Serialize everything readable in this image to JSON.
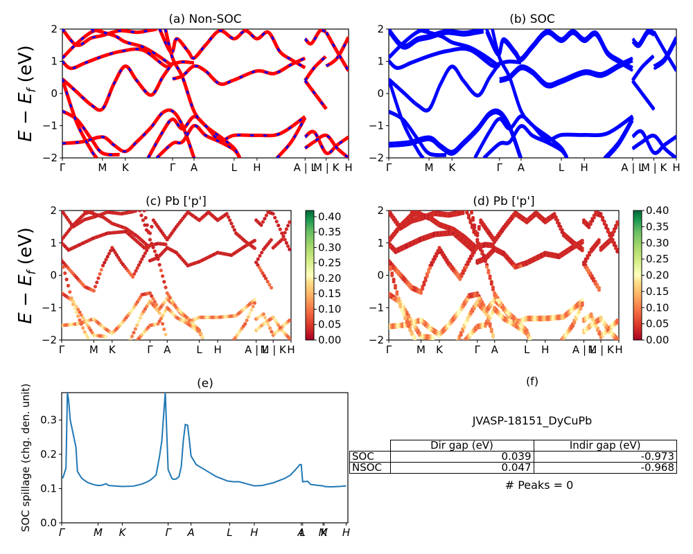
{
  "chart_data": [
    {
      "id": "a",
      "type": "line",
      "title": "(a) Non-SOC",
      "ylabel": "E − E_f (eV)",
      "ylim": [
        -2,
        2
      ],
      "yticks": [
        "−2",
        "−1",
        "0",
        "1",
        "2"
      ],
      "xticks": [
        "Γ",
        "M",
        "K",
        "Γ",
        "A",
        "L",
        "H",
        "A | L",
        "M | K",
        "H"
      ],
      "xtick_pos": [
        0,
        0.14,
        0.22,
        0.385,
        0.46,
        0.6,
        0.68,
        0.848,
        0.922,
        1.0
      ],
      "style": "red line with blue dashes overlaid (non-SOC bands)",
      "colors": {
        "primary": "#ff0000",
        "secondary": "#0000ff"
      },
      "bands": [
        [
          [
            0,
            1.0
          ],
          [
            0.03,
            0.78
          ],
          [
            0.08,
            0.95
          ],
          [
            0.14,
            1.15
          ],
          [
            0.2,
            1.3
          ],
          [
            0.28,
            1.35
          ],
          [
            0.36,
            0.85
          ],
          [
            0.385,
            0.92
          ],
          [
            0.42,
            0.98
          ],
          [
            0.46,
            0.95
          ]
        ],
        [
          [
            0,
            0.45
          ],
          [
            0.05,
            0.05
          ],
          [
            0.1,
            -0.35
          ],
          [
            0.14,
            -0.48
          ],
          [
            0.18,
            0.3
          ],
          [
            0.22,
            0.85
          ],
          [
            0.26,
            0.4
          ],
          [
            0.31,
            -0.05
          ],
          [
            0.35,
            0.5
          ],
          [
            0.385,
            0.95
          ]
        ],
        [
          [
            0.385,
            0.45
          ],
          [
            0.42,
            0.55
          ],
          [
            0.46,
            0.85
          ],
          [
            0.5,
            0.7
          ],
          [
            0.55,
            0.3
          ],
          [
            0.6,
            0.42
          ],
          [
            0.68,
            0.7
          ],
          [
            0.74,
            0.62
          ],
          [
            0.8,
            0.9
          ],
          [
            0.848,
            1.1
          ]
        ],
        [
          [
            0.848,
            0.4
          ],
          [
            0.88,
            0.8
          ],
          [
            0.92,
            1.15
          ]
        ],
        [
          [
            0.848,
            0.4
          ],
          [
            0.89,
            -0.1
          ],
          [
            0.922,
            -0.48
          ]
        ],
        [
          [
            0.922,
            0.85
          ],
          [
            0.96,
            1.1
          ],
          [
            1.0,
            1.75
          ]
        ],
        [
          [
            0.922,
            1.9
          ],
          [
            0.96,
            1.3
          ],
          [
            1.0,
            0.7
          ]
        ],
        [
          [
            0,
            -0.55
          ],
          [
            0.05,
            -0.8
          ],
          [
            0.1,
            -1.4
          ],
          [
            0.14,
            -1.85
          ],
          [
            0.2,
            -1.9
          ]
        ],
        [
          [
            0,
            -1.55
          ],
          [
            0.07,
            -1.5
          ],
          [
            0.14,
            -1.35
          ],
          [
            0.18,
            -1.6
          ],
          [
            0.22,
            -1.8
          ],
          [
            0.26,
            -1.5
          ],
          [
            0.31,
            -1.05
          ],
          [
            0.35,
            -0.6
          ],
          [
            0.385,
            -0.55
          ],
          [
            0.42,
            -1.0
          ],
          [
            0.46,
            -2.0
          ]
        ],
        [
          [
            0.3,
            -2.0
          ],
          [
            0.35,
            -1.2
          ],
          [
            0.385,
            -0.8
          ],
          [
            0.42,
            -1.1
          ],
          [
            0.46,
            -0.72
          ],
          [
            0.5,
            -1.0
          ],
          [
            0.55,
            -1.45
          ],
          [
            0.6,
            -1.3
          ],
          [
            0.68,
            -1.3
          ],
          [
            0.76,
            -1.25
          ],
          [
            0.848,
            -0.72
          ]
        ],
        [
          [
            0.33,
            -2.0
          ],
          [
            0.385,
            -1.55
          ],
          [
            0.42,
            -1.5
          ],
          [
            0.46,
            -1.0
          ],
          [
            0.5,
            -1.3
          ],
          [
            0.55,
            -1.5
          ],
          [
            0.6,
            -1.75
          ],
          [
            0.62,
            -2.0
          ]
        ],
        [
          [
            0.75,
            -2.0
          ],
          [
            0.8,
            -1.5
          ],
          [
            0.848,
            -0.75
          ]
        ],
        [
          [
            0.848,
            -1.35
          ],
          [
            0.88,
            -1.2
          ],
          [
            0.922,
            -1.85
          ],
          [
            0.96,
            -1.6
          ],
          [
            1.0,
            -1.35
          ]
        ],
        [
          [
            0.848,
            -1.7
          ],
          [
            0.88,
            -1.5
          ],
          [
            0.922,
            -1.3
          ],
          [
            0.96,
            -1.7
          ],
          [
            1.0,
            -2.0
          ]
        ],
        [
          [
            0,
            2.0
          ],
          [
            0.05,
            1.5
          ],
          [
            0.1,
            1.72
          ],
          [
            0.14,
            1.8
          ],
          [
            0.2,
            1.95
          ],
          [
            0.26,
            1.9
          ],
          [
            0.3,
            1.95
          ],
          [
            0.33,
            2.0
          ]
        ],
        [
          [
            0,
            1.1
          ],
          [
            0.05,
            1.55
          ],
          [
            0.1,
            1.9
          ],
          [
            0.14,
            2.0
          ]
        ],
        [
          [
            0.1,
            2.0
          ],
          [
            0.18,
            1.8
          ],
          [
            0.22,
            1.6
          ],
          [
            0.28,
            1.45
          ],
          [
            0.33,
            1.2
          ],
          [
            0.385,
            0.85
          ]
        ],
        [
          [
            0.34,
            2.0
          ],
          [
            0.37,
            1.4
          ],
          [
            0.385,
            1.3
          ],
          [
            0.4,
            1.7
          ],
          [
            0.44,
            1.3
          ],
          [
            0.46,
            1.1
          ],
          [
            0.5,
            1.5
          ],
          [
            0.55,
            1.95
          ],
          [
            0.6,
            1.7
          ],
          [
            0.64,
            1.95
          ],
          [
            0.68,
            1.7
          ],
          [
            0.72,
            1.9
          ],
          [
            0.76,
            1.3
          ],
          [
            0.8,
            1.05
          ],
          [
            0.848,
            0.8
          ]
        ],
        [
          [
            0.36,
            2.0
          ],
          [
            0.385,
            1.1
          ],
          [
            0.42,
            0.5
          ],
          [
            0.46,
            -0.55
          ],
          [
            0.5,
            -1.0
          ],
          [
            0.56,
            -1.4
          ],
          [
            0.6,
            -1.7
          ],
          [
            0.62,
            -2.0
          ]
        ],
        [
          [
            0,
            0.45
          ],
          [
            0.05,
            -0.9
          ],
          [
            0.1,
            -1.75
          ],
          [
            0.12,
            -2.0
          ]
        ],
        [
          [
            0.848,
            1.7
          ],
          [
            0.87,
            1.55
          ],
          [
            0.9,
            1.95
          ],
          [
            0.922,
            1.9
          ]
        ]
      ]
    },
    {
      "id": "b",
      "type": "line",
      "title": "(b) SOC",
      "ylim": [
        -2,
        2
      ],
      "yticks": [
        "−2",
        "−1",
        "0",
        "1",
        "2"
      ],
      "xticks": [
        "Γ",
        "M",
        "K",
        "Γ",
        "A",
        "L",
        "H",
        "A | L",
        "M | K",
        "H"
      ],
      "xtick_pos": [
        0,
        0.14,
        0.22,
        0.385,
        0.46,
        0.6,
        0.68,
        0.848,
        0.922,
        1.0
      ],
      "style": "solid blue thick lines (SOC-split bands)",
      "colors": {
        "primary": "#0000ff"
      },
      "bands": "same as (a) with small spin-orbit splittings"
    },
    {
      "id": "c",
      "type": "scatter",
      "title": "(c)  Pb ['p']",
      "ylabel": "E − E_f (eV)",
      "ylim": [
        -2,
        2
      ],
      "yticks": [
        "−2",
        "−1",
        "0",
        "1",
        "2"
      ],
      "xticks": [
        "Γ",
        "M",
        "K",
        "Γ",
        "A",
        "L",
        "H",
        "A | L",
        "M | K",
        "H"
      ],
      "xtick_pos": [
        0,
        0.14,
        0.22,
        0.385,
        0.46,
        0.6,
        0.68,
        0.848,
        0.922,
        1.0
      ],
      "colormap": "RdYlGn",
      "colorbar": {
        "min": 0.0,
        "max": 0.42,
        "ticks": [
          "0.00",
          "0.05",
          "0.10",
          "0.15",
          "0.20",
          "0.25",
          "0.30",
          "0.35",
          "0.40"
        ]
      },
      "note": "Non-SOC bands, colored by Pb p-orbital projection"
    },
    {
      "id": "d",
      "type": "scatter",
      "title": "(d) Pb ['p']",
      "ylim": [
        -2,
        2
      ],
      "yticks": [
        "−2",
        "−1",
        "0",
        "1",
        "2"
      ],
      "xticks": [
        "Γ",
        "M",
        "K",
        "Γ",
        "A",
        "L",
        "H",
        "A | L",
        "M | K",
        "H"
      ],
      "xtick_pos": [
        0,
        0.14,
        0.22,
        0.385,
        0.46,
        0.6,
        0.68,
        0.848,
        0.922,
        1.0
      ],
      "colormap": "RdYlGn",
      "colorbar": {
        "min": 0.0,
        "max": 0.4,
        "ticks": [
          "0.00",
          "0.05",
          "0.10",
          "0.15",
          "0.20",
          "0.25",
          "0.30",
          "0.35",
          "0.40"
        ]
      },
      "note": "SOC bands, colored by Pb p-orbital projection"
    },
    {
      "id": "e",
      "type": "line",
      "title": "(e)",
      "ylabel": "SOC spillage (chg. den. unit)",
      "ylim": [
        0,
        0.38
      ],
      "yticks": [
        "0.0",
        "0.1",
        "0.2",
        "0.3"
      ],
      "ytick_vals": [
        0,
        0.1,
        0.2,
        0.3
      ],
      "xticks": [
        "Γ",
        "M",
        "K",
        "Γ",
        "A",
        "L",
        "H",
        "A",
        "L",
        "M",
        "K",
        "H"
      ],
      "xtick_pos": [
        0,
        0.127,
        0.212,
        0.372,
        0.452,
        0.587,
        0.673,
        0.837,
        0.842,
        0.913,
        0.917,
        0.994
      ],
      "color": "#1f77b4",
      "x": [
        0,
        0.005,
        0.015,
        0.02,
        0.024,
        0.03,
        0.05,
        0.055,
        0.07,
        0.09,
        0.11,
        0.127,
        0.14,
        0.155,
        0.165,
        0.18,
        0.212,
        0.25,
        0.28,
        0.3,
        0.31,
        0.32,
        0.33,
        0.342,
        0.35,
        0.355,
        0.362,
        0.372,
        0.385,
        0.39,
        0.4,
        0.41,
        0.418,
        0.425,
        0.432,
        0.44,
        0.445,
        0.452,
        0.47,
        0.5,
        0.54,
        0.58,
        0.6,
        0.62,
        0.65,
        0.673,
        0.7,
        0.74,
        0.78,
        0.8,
        0.82,
        0.832,
        0.837,
        0.842,
        0.855,
        0.86,
        0.87,
        0.9,
        0.913,
        0.917,
        0.94,
        0.97,
        0.994
      ],
      "y": [
        0.13,
        0.133,
        0.16,
        0.38,
        0.36,
        0.3,
        0.22,
        0.15,
        0.13,
        0.118,
        0.112,
        0.109,
        0.11,
        0.114,
        0.109,
        0.108,
        0.106,
        0.107,
        0.113,
        0.12,
        0.125,
        0.132,
        0.14,
        0.195,
        0.24,
        0.3,
        0.38,
        0.155,
        0.13,
        0.127,
        0.128,
        0.135,
        0.165,
        0.24,
        0.287,
        0.285,
        0.25,
        0.195,
        0.17,
        0.155,
        0.135,
        0.122,
        0.12,
        0.12,
        0.113,
        0.108,
        0.109,
        0.117,
        0.13,
        0.14,
        0.158,
        0.17,
        0.17,
        0.12,
        0.121,
        0.121,
        0.112,
        0.109,
        0.108,
        0.106,
        0.105,
        0.106,
        0.108
      ]
    }
  ],
  "panel_f": {
    "title": "(f)",
    "material": "JVASP-18151_DyCuPb",
    "table": {
      "columns": [
        "Dir gap (eV)",
        "Indir gap (eV)"
      ],
      "rows": [
        {
          "label": "SOC",
          "dir": "0.039",
          "indir": "-0.973"
        },
        {
          "label": "NSOC",
          "dir": "0.047",
          "indir": "-0.968"
        }
      ]
    },
    "peaks_text": "# Peaks = 0"
  }
}
